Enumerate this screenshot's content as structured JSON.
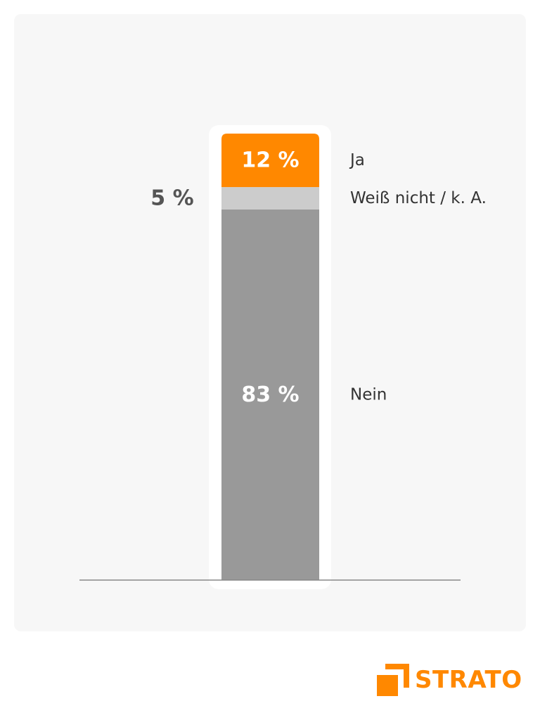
{
  "chart_data": {
    "type": "bar",
    "stacked": true,
    "categories": [
      ""
    ],
    "series": [
      {
        "name": "Ja",
        "value": 12,
        "label": "12 %",
        "color": "#ff8800",
        "label_color": "#ffffff",
        "label_position": "inside"
      },
      {
        "name": "Weiß nicht / k. A.",
        "value": 5,
        "label": "5 %",
        "color": "#cccccc",
        "label_color": "#555555",
        "label_position": "left"
      },
      {
        "name": "Nein",
        "value": 83,
        "label": "83 %",
        "color": "#999999",
        "label_color": "#ffffff",
        "label_position": "inside"
      }
    ],
    "ylim": [
      0,
      100
    ],
    "legend": "right",
    "grid": false,
    "baseline_color": "#888888"
  },
  "brand": {
    "name": "STRATO",
    "color": "#ff8800",
    "logo_icon": "strato-logo-icon"
  }
}
